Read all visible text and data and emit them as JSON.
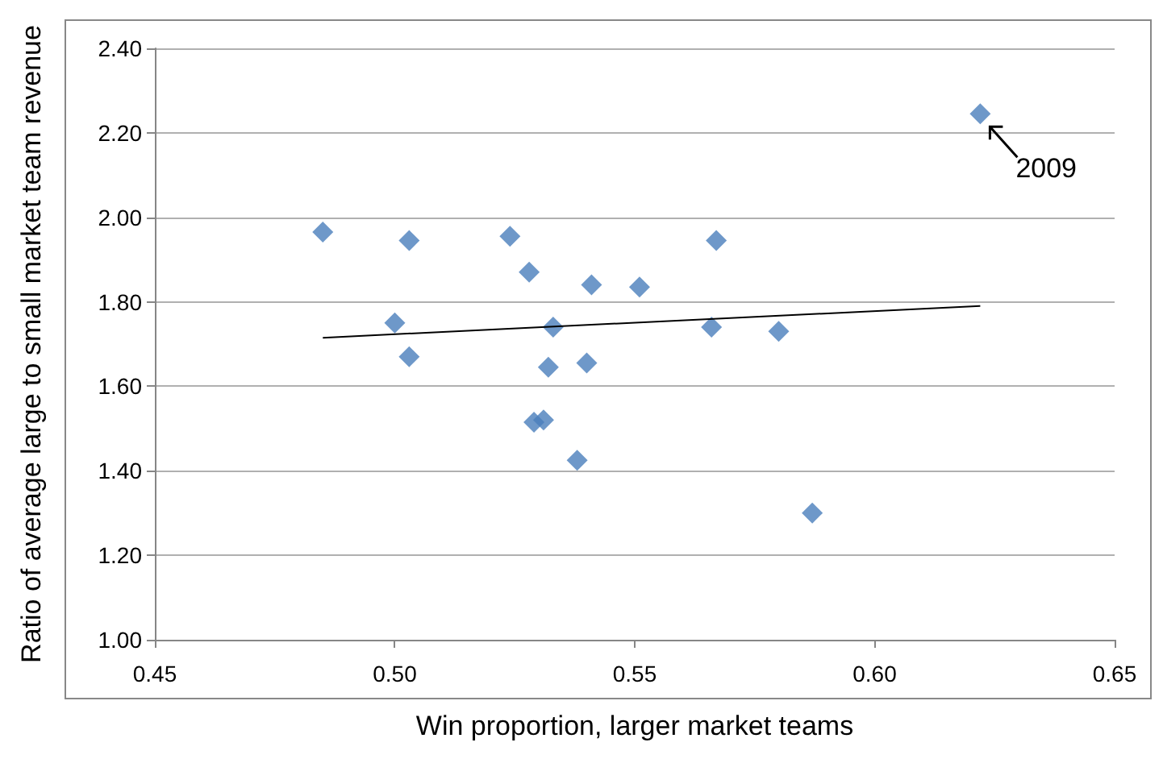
{
  "chart_data": {
    "type": "scatter",
    "xlabel": "Win proportion, larger market teams",
    "ylabel": "Ratio of average large to small market team revenue",
    "series": [
      {
        "color": "#4a7ebb",
        "x": [
          0.485,
          0.503,
          0.524,
          0.528,
          0.541,
          0.551,
          0.567,
          0.622,
          0.5,
          0.503,
          0.533,
          0.532,
          0.54,
          0.566,
          0.58,
          0.529,
          0.531,
          0.538,
          0.587
        ],
        "values": [
          1.965,
          1.945,
          1.955,
          1.87,
          1.84,
          1.835,
          1.945,
          2.245,
          1.75,
          1.67,
          1.74,
          1.645,
          1.655,
          1.74,
          1.73,
          1.515,
          1.52,
          1.425,
          1.3
        ]
      },
      {
        "type": "line",
        "marker": "none",
        "color": "#000000",
        "x": [
          0.485,
          0.622
        ],
        "values": [
          1.715,
          1.79
        ]
      }
    ],
    "annotations": [
      {
        "text": "2009",
        "x": 0.622,
        "y": 2.245
      }
    ],
    "xlim": [
      0.45,
      0.65
    ],
    "xticks": [
      0.45,
      {
        "value": 0.5,
        "label": "0.50"
      },
      0.55,
      {
        "value": 0.6,
        "label": "0.60"
      },
      0.65
    ],
    "ylim": [
      1.0,
      2.4
    ],
    "yticks": [
      {
        "value": 1,
        "label": "1.00"
      },
      {
        "value": 1.2,
        "label": "1.20"
      },
      {
        "value": 1.4,
        "label": "1.40"
      },
      {
        "value": 1.6,
        "label": "1.60"
      },
      {
        "value": 1.8,
        "label": "1.80"
      },
      {
        "value": 2,
        "label": "2.00"
      },
      {
        "value": 2.2,
        "label": "2.20"
      },
      {
        "value": 2.4,
        "label": "2.40"
      }
    ],
    "grid": "y",
    "marker": "diamond"
  }
}
